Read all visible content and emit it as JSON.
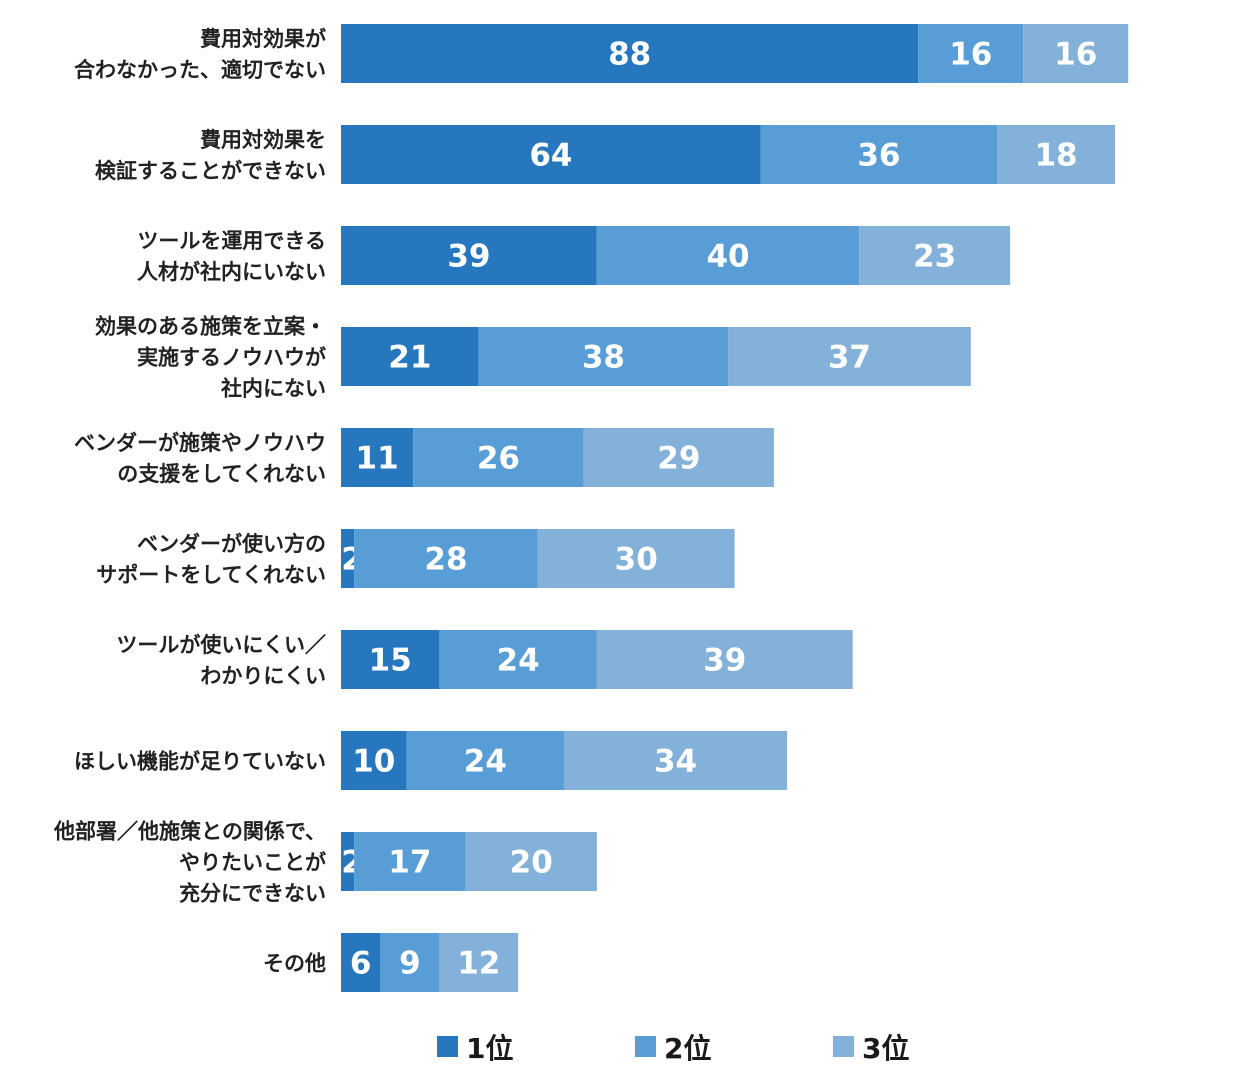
{
  "chart_data": {
    "type": "bar",
    "orientation": "horizontal",
    "stacked": true,
    "categories": [
      [
        "費用対効果が",
        "合わなかった、適切でない"
      ],
      [
        "費用対効果を",
        "検証することができない"
      ],
      [
        "ツールを運用できる",
        "人材が社内にいない"
      ],
      [
        "効果のある施策を立案・",
        "実施するノウハウが",
        "社内にない"
      ],
      [
        "ベンダーが施策やノウハウ",
        "の支援をしてくれない"
      ],
      [
        "ベンダーが使い方の",
        "サポートをしてくれない"
      ],
      [
        "ツールが使いにくい／",
        "わかりにくい"
      ],
      [
        "ほしい機能が足りていない"
      ],
      [
        "他部署／他施策との関係で、",
        "やりたいことが",
        "充分にできない"
      ],
      [
        "その他"
      ]
    ],
    "series": [
      {
        "name": "1位",
        "color": "#2677be",
        "values": [
          88,
          64,
          39,
          21,
          11,
          2,
          15,
          10,
          2,
          6
        ]
      },
      {
        "name": "2位",
        "color": "#589dd6",
        "values": [
          16,
          36,
          40,
          38,
          26,
          28,
          24,
          24,
          17,
          9
        ]
      },
      {
        "name": "3位",
        "color": "#84b1da",
        "values": [
          16,
          18,
          23,
          37,
          29,
          30,
          39,
          34,
          20,
          12
        ]
      }
    ],
    "title": "",
    "xlabel": "",
    "ylabel": "",
    "grid": false,
    "legend": "bottom-center"
  }
}
